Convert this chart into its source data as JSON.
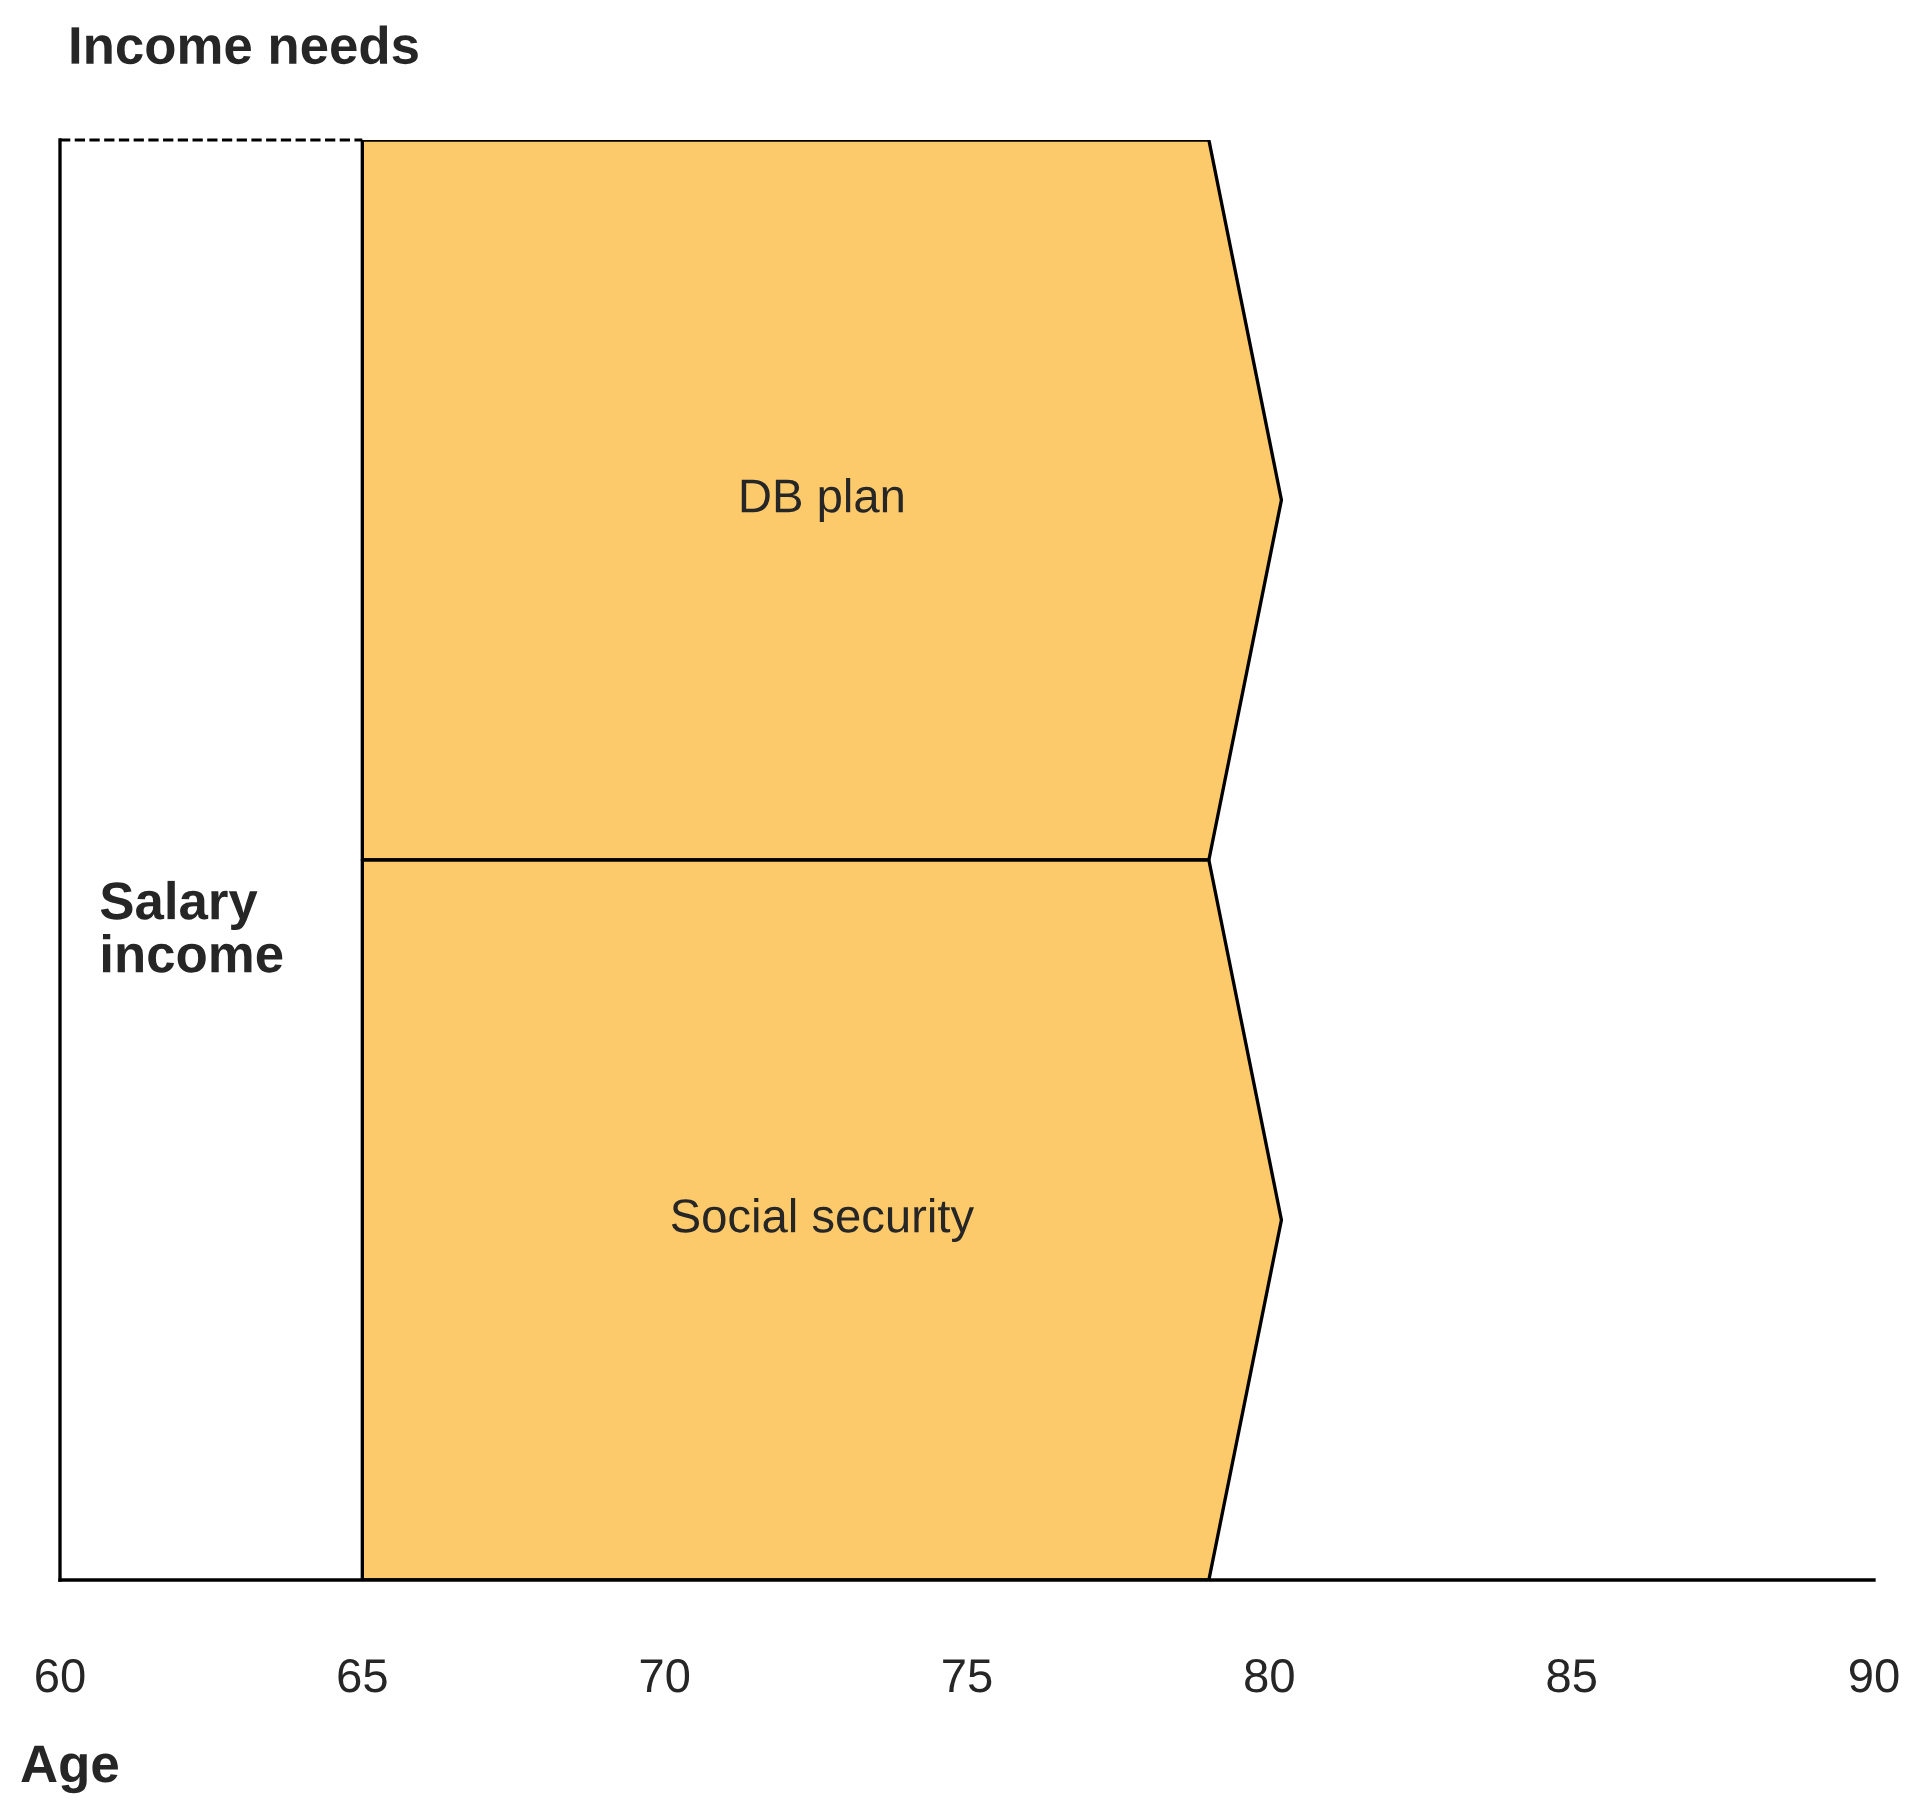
{
  "chart_data": {
    "type": "bar",
    "orientation": "horizontal",
    "title": "Income needs",
    "xlabel": "Age",
    "categories": [
      "DB plan",
      "Social security"
    ],
    "base": [
      65,
      65
    ],
    "values": [
      15.2,
      15.2
    ],
    "color": "#fdca6b",
    "data_labels": false,
    "xlim": [
      60,
      90
    ],
    "xticks": [
      60,
      65,
      70,
      75,
      80,
      85,
      90
    ],
    "tick_labels": "x",
    "grid": false,
    "legend": false,
    "annotations": [
      "Salary income"
    ]
  }
}
